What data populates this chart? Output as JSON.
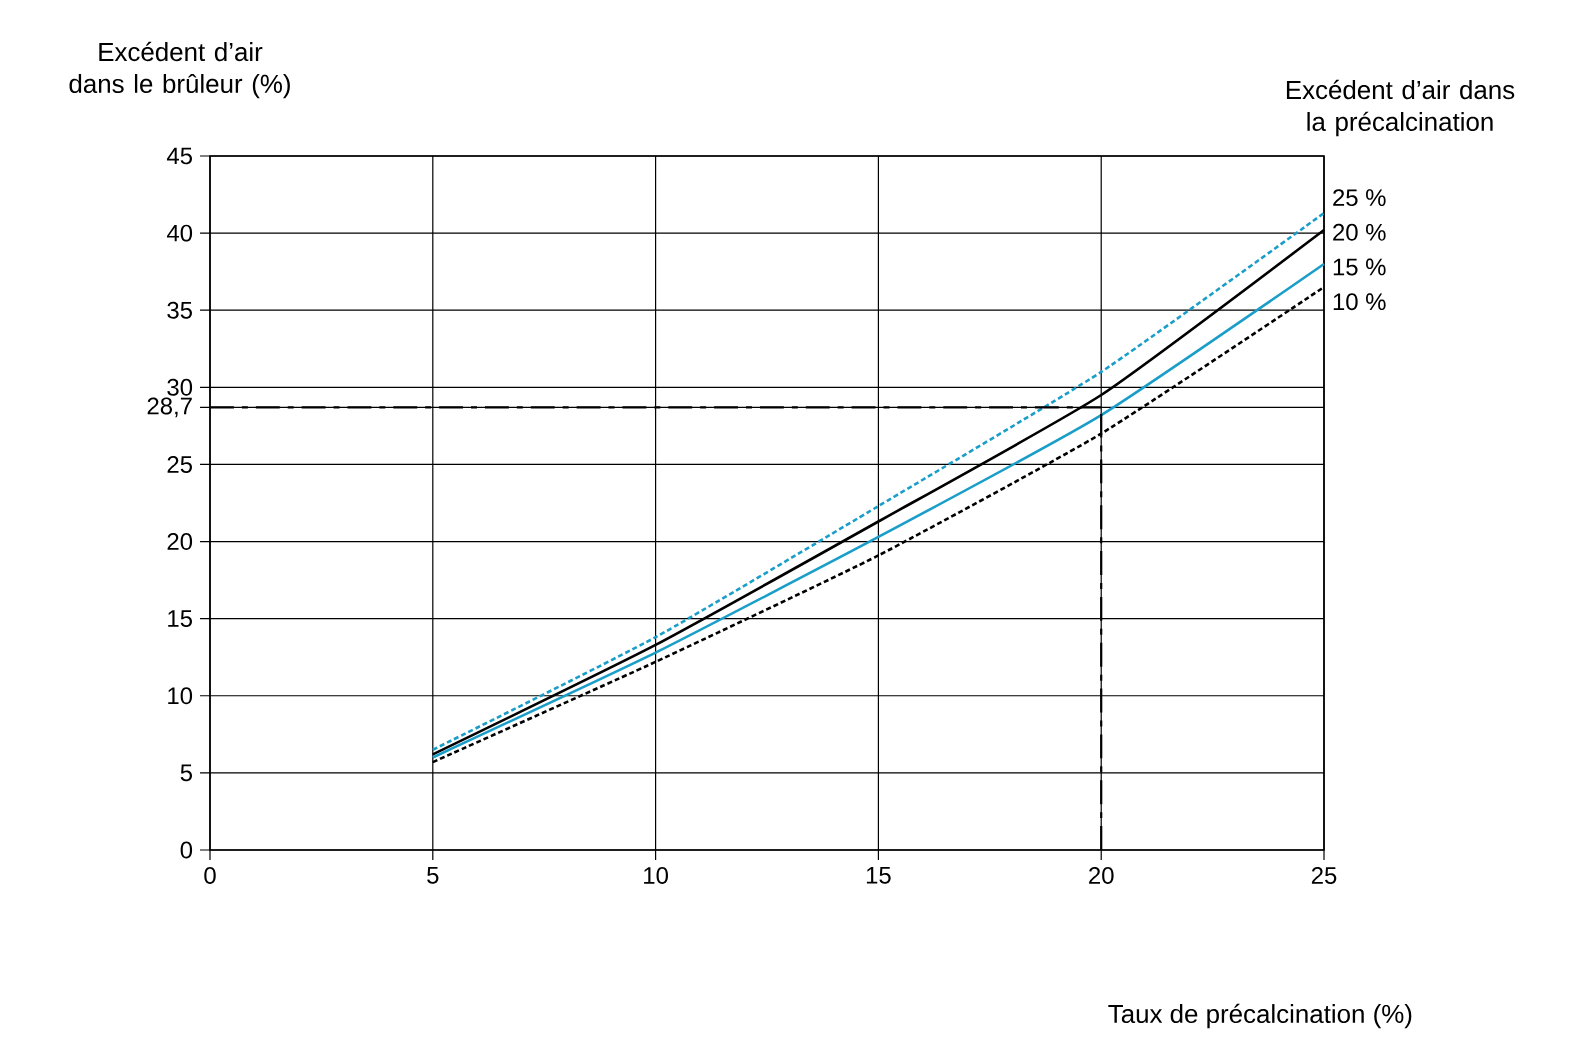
{
  "chart_data": {
    "type": "line",
    "xlabel": "Taux de précalcination (%)",
    "ylabel": "Excédent d’air dans le brûleur (%)",
    "legend_title": "Excédent d’air dans la précalcination",
    "x": [
      5,
      10,
      15,
      20,
      25
    ],
    "series": [
      {
        "name": "25 %",
        "color": "#1a9ec9",
        "line_style": "dotted",
        "values": [
          6.5,
          13.8,
          22.3,
          31.0,
          41.3
        ]
      },
      {
        "name": "20 %",
        "color": "#000000",
        "line_style": "solid",
        "values": [
          6.2,
          13.3,
          21.3,
          29.5,
          40.2
        ]
      },
      {
        "name": "15 %",
        "color": "#1a9ec9",
        "line_style": "solid",
        "values": [
          6.0,
          12.8,
          20.3,
          28.2,
          38.0
        ]
      },
      {
        "name": "10 %",
        "color": "#000000",
        "line_style": "dotted",
        "values": [
          5.7,
          12.2,
          19.1,
          27.0,
          36.5
        ]
      }
    ],
    "xlim": [
      0,
      25
    ],
    "ylim": [
      0,
      45
    ],
    "xticks": [
      0,
      5,
      10,
      15,
      20,
      25
    ],
    "yticks": [
      0,
      5,
      10,
      15,
      20,
      25,
      {
        "value": 28.7,
        "label": "28,7"
      },
      30,
      35,
      40,
      45
    ],
    "ref_lines": [
      {
        "axis": "y",
        "value": 28.7,
        "color": "#000000",
        "line_style": "dashdot"
      },
      {
        "axis": "x",
        "value": 20,
        "color": "#000000",
        "line_style": "dashdot"
      }
    ],
    "grid": true,
    "legend": false
  }
}
